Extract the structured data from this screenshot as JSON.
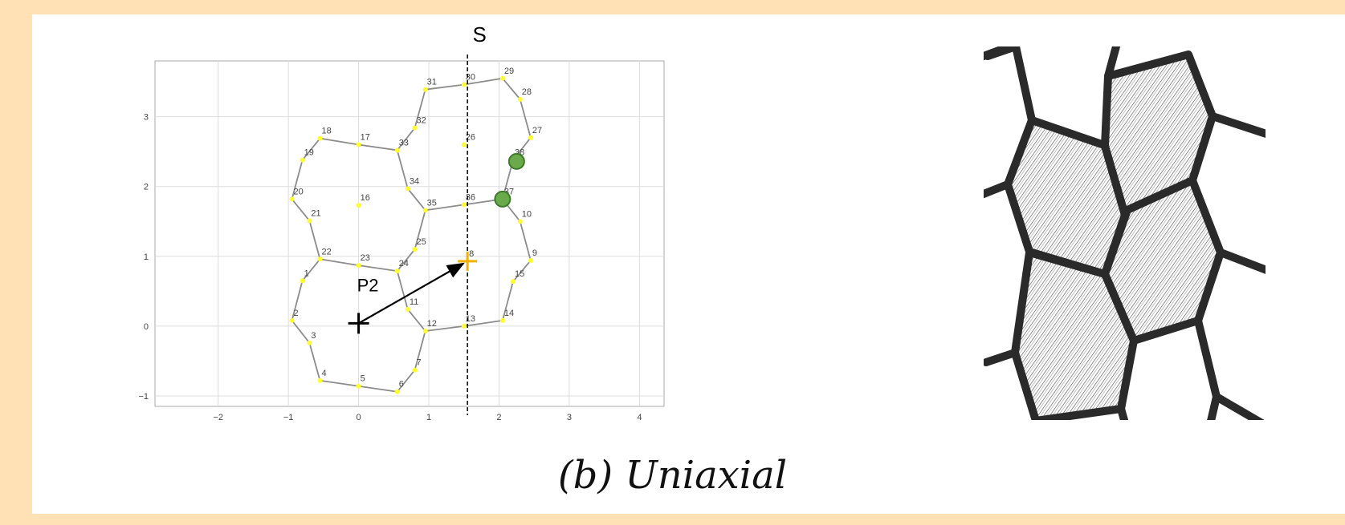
{
  "chart_data": {
    "type": "scatter",
    "title": "",
    "xlabel": "",
    "ylabel": "",
    "xlim": [
      -2.9,
      4.35
    ],
    "ylim": [
      -1.15,
      3.8
    ],
    "grid": true,
    "xticks": [
      -2,
      -1,
      0,
      1,
      2,
      3,
      4
    ],
    "yticks": [
      -1,
      0,
      1,
      2,
      3
    ],
    "points": [
      {
        "id": "1",
        "x": -0.8,
        "y": 0.65
      },
      {
        "id": "2",
        "x": -0.95,
        "y": 0.08
      },
      {
        "id": "3",
        "x": -0.7,
        "y": -0.24
      },
      {
        "id": "4",
        "x": -0.55,
        "y": -0.78
      },
      {
        "id": "5",
        "x": 0.0,
        "y": -0.86
      },
      {
        "id": "6",
        "x": 0.55,
        "y": -0.94
      },
      {
        "id": "7",
        "x": 0.8,
        "y": -0.63
      },
      {
        "id": "8",
        "x": 1.55,
        "y": 0.93
      },
      {
        "id": "9",
        "x": 2.45,
        "y": 0.94
      },
      {
        "id": "10",
        "x": 2.3,
        "y": 1.5
      },
      {
        "id": "11",
        "x": 0.7,
        "y": 0.24
      },
      {
        "id": "12",
        "x": 0.95,
        "y": -0.07
      },
      {
        "id": "13",
        "x": 1.5,
        "y": 0.0
      },
      {
        "id": "14",
        "x": 2.05,
        "y": 0.08
      },
      {
        "id": "15",
        "x": 2.2,
        "y": 0.64
      },
      {
        "id": "16",
        "x": 0.0,
        "y": 1.73
      },
      {
        "id": "17",
        "x": 0.0,
        "y": 2.6
      },
      {
        "id": "18",
        "x": -0.55,
        "y": 2.69
      },
      {
        "id": "19",
        "x": -0.8,
        "y": 2.38
      },
      {
        "id": "20",
        "x": -0.95,
        "y": 1.82
      },
      {
        "id": "21",
        "x": -0.7,
        "y": 1.51
      },
      {
        "id": "22",
        "x": -0.55,
        "y": 0.96
      },
      {
        "id": "23",
        "x": 0.0,
        "y": 0.87
      },
      {
        "id": "24",
        "x": 0.55,
        "y": 0.79
      },
      {
        "id": "25",
        "x": 0.8,
        "y": 1.1
      },
      {
        "id": "26",
        "x": 1.5,
        "y": 2.6
      },
      {
        "id": "27",
        "x": 2.45,
        "y": 2.7
      },
      {
        "id": "28",
        "x": 2.3,
        "y": 3.25
      },
      {
        "id": "29",
        "x": 2.05,
        "y": 3.55
      },
      {
        "id": "30",
        "x": 1.5,
        "y": 3.46
      },
      {
        "id": "31",
        "x": 0.95,
        "y": 3.39
      },
      {
        "id": "32",
        "x": 0.8,
        "y": 2.84
      },
      {
        "id": "33",
        "x": 0.55,
        "y": 2.52
      },
      {
        "id": "34",
        "x": 0.7,
        "y": 1.97
      },
      {
        "id": "35",
        "x": 0.95,
        "y": 1.66
      },
      {
        "id": "36",
        "x": 1.5,
        "y": 1.74
      },
      {
        "id": "37",
        "x": 2.05,
        "y": 1.82
      },
      {
        "id": "38",
        "x": 2.2,
        "y": 2.38
      }
    ],
    "edges": [
      [
        "22",
        "1"
      ],
      [
        "1",
        "2"
      ],
      [
        "2",
        "3"
      ],
      [
        "3",
        "4"
      ],
      [
        "4",
        "5"
      ],
      [
        "5",
        "6"
      ],
      [
        "6",
        "7"
      ],
      [
        "7",
        "12"
      ],
      [
        "12",
        "11"
      ],
      [
        "11",
        "24"
      ],
      [
        "24",
        "23"
      ],
      [
        "23",
        "22"
      ],
      [
        "22",
        "21"
      ],
      [
        "21",
        "20"
      ],
      [
        "20",
        "19"
      ],
      [
        "19",
        "18"
      ],
      [
        "18",
        "17"
      ],
      [
        "17",
        "33"
      ],
      [
        "33",
        "34"
      ],
      [
        "34",
        "35"
      ],
      [
        "35",
        "25"
      ],
      [
        "25",
        "24"
      ],
      [
        "33",
        "32"
      ],
      [
        "32",
        "31"
      ],
      [
        "31",
        "30"
      ],
      [
        "30",
        "29"
      ],
      [
        "29",
        "28"
      ],
      [
        "28",
        "27"
      ],
      [
        "27",
        "38"
      ],
      [
        "38",
        "37"
      ],
      [
        "37",
        "36"
      ],
      [
        "36",
        "35"
      ],
      [
        "37",
        "10"
      ],
      [
        "10",
        "9"
      ],
      [
        "9",
        "15"
      ],
      [
        "15",
        "14"
      ],
      [
        "14",
        "13"
      ],
      [
        "13",
        "12"
      ]
    ],
    "highlighted": [
      {
        "x": 2.25,
        "y": 2.36
      },
      {
        "x": 2.05,
        "y": 1.82
      }
    ],
    "origin_marker": {
      "x": 0.0,
      "y": 0.04
    },
    "target_marker": {
      "x": 1.55,
      "y": 0.93
    },
    "vector_label": "P2",
    "symmetry_line": {
      "x": 1.55,
      "label": "S"
    }
  },
  "caption": "(b) Uniaxial",
  "colors": {
    "point": "#ffff33",
    "edge": "#8c8c8c",
    "highlight": "#6aaa4a",
    "target": "#f2b000",
    "grid": "#dddddd",
    "frame": "#ffe1b5"
  }
}
